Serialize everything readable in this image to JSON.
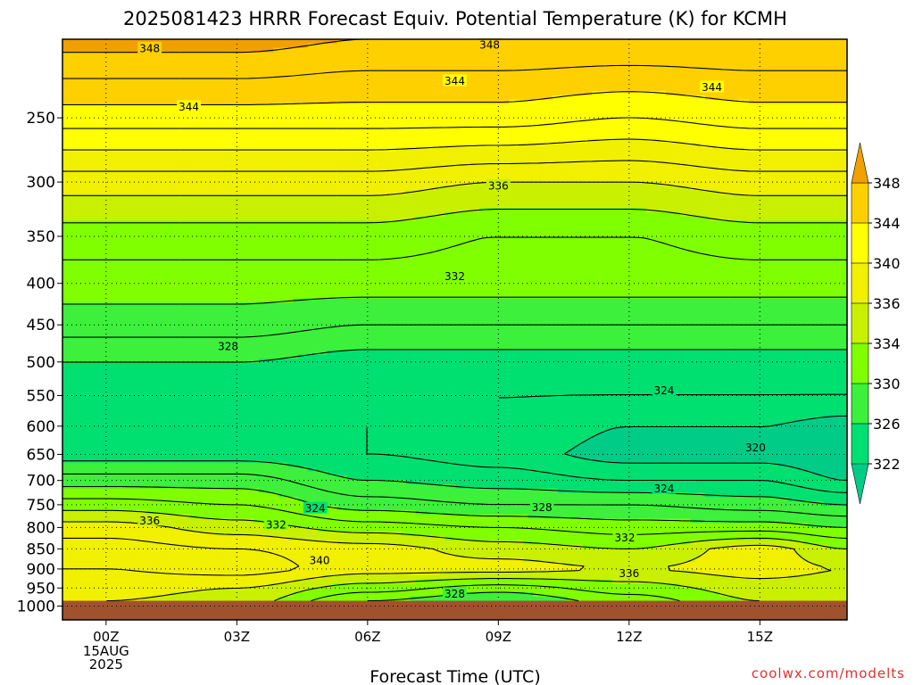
{
  "chart_data": {
    "type": "heatmap",
    "title": "2025081423 HRRR Forecast Equiv. Potential Temperature (K) for KCMH",
    "xlabel": "Forecast Time (UTC)",
    "ylabel": "",
    "x_axis": {
      "range_hours": [
        -1,
        17
      ],
      "ticks": [
        {
          "hour": 0,
          "label": "00Z",
          "date_line1": "15AUG",
          "date_line2": "2025"
        },
        {
          "hour": 3,
          "label": "03Z"
        },
        {
          "hour": 6,
          "label": "06Z"
        },
        {
          "hour": 9,
          "label": "09Z"
        },
        {
          "hour": 12,
          "label": "12Z"
        },
        {
          "hour": 15,
          "label": "15Z"
        }
      ]
    },
    "y_axis": {
      "scale": "log-pressure",
      "range_hpa": [
        1040,
        200
      ],
      "ticks": [
        250,
        300,
        350,
        400,
        450,
        500,
        550,
        600,
        650,
        700,
        750,
        800,
        850,
        900,
        950,
        1000
      ],
      "grid": "dotted"
    },
    "ground_level_hpa": 985,
    "ground_color": "#a0522d",
    "contour_interval_K": 2,
    "colorbar": {
      "levels": [
        322,
        326,
        330,
        334,
        336,
        340,
        344,
        348
      ],
      "tick_labels": [
        "322",
        "326",
        "330",
        "334",
        "336",
        "340",
        "344",
        "348"
      ],
      "bins": [
        {
          "range": [
            318,
            322
          ],
          "color": "#00cc88"
        },
        {
          "range": [
            322,
            326
          ],
          "color": "#00e070"
        },
        {
          "range": [
            326,
            330
          ],
          "color": "#3cf03c"
        },
        {
          "range": [
            330,
            334
          ],
          "color": "#80ff00"
        },
        {
          "range": [
            334,
            336
          ],
          "color": "#c8f000"
        },
        {
          "range": [
            336,
            340
          ],
          "color": "#f0f000"
        },
        {
          "range": [
            340,
            344
          ],
          "color": "#ffff00"
        },
        {
          "range": [
            344,
            348
          ],
          "color": "#ffd000"
        },
        {
          "range": [
            348,
            352
          ],
          "color": "#f0a000"
        }
      ]
    },
    "profiles": [
      {
        "hour": 0,
        "points": [
          [
            200,
            349
          ],
          [
            250,
            343
          ],
          [
            300,
            337
          ],
          [
            350,
            333
          ],
          [
            400,
            331
          ],
          [
            450,
            329
          ],
          [
            500,
            326
          ],
          [
            550,
            324
          ],
          [
            600,
            324
          ],
          [
            650,
            325
          ],
          [
            700,
            329
          ],
          [
            750,
            333
          ],
          [
            800,
            337
          ],
          [
            850,
            339
          ],
          [
            900,
            338
          ],
          [
            950,
            337
          ],
          [
            985,
            336
          ]
        ]
      },
      {
        "hour": 3,
        "points": [
          [
            200,
            349
          ],
          [
            250,
            343
          ],
          [
            300,
            337
          ],
          [
            350,
            333
          ],
          [
            400,
            331
          ],
          [
            450,
            329
          ],
          [
            500,
            326
          ],
          [
            550,
            324
          ],
          [
            600,
            324
          ],
          [
            650,
            325
          ],
          [
            700,
            329
          ],
          [
            750,
            332
          ],
          [
            800,
            335
          ],
          [
            850,
            338
          ],
          [
            900,
            339
          ],
          [
            950,
            336
          ],
          [
            985,
            335
          ]
        ]
      },
      {
        "hour": 6,
        "points": [
          [
            200,
            348
          ],
          [
            250,
            343
          ],
          [
            300,
            337
          ],
          [
            350,
            333
          ],
          [
            400,
            331
          ],
          [
            450,
            328
          ],
          [
            500,
            325
          ],
          [
            550,
            324
          ],
          [
            600,
            324
          ],
          [
            650,
            324
          ],
          [
            700,
            326
          ],
          [
            750,
            329
          ],
          [
            800,
            333
          ],
          [
            850,
            337
          ],
          [
            900,
            337
          ],
          [
            950,
            333
          ],
          [
            985,
            330
          ]
        ]
      },
      {
        "hour": 9,
        "points": [
          [
            200,
            348
          ],
          [
            250,
            343
          ],
          [
            300,
            336
          ],
          [
            350,
            332
          ],
          [
            400,
            331
          ],
          [
            450,
            328
          ],
          [
            500,
            325
          ],
          [
            550,
            324
          ],
          [
            600,
            324
          ],
          [
            650,
            323
          ],
          [
            700,
            325
          ],
          [
            750,
            328
          ],
          [
            800,
            332
          ],
          [
            850,
            335
          ],
          [
            900,
            337
          ],
          [
            950,
            331
          ],
          [
            985,
            328
          ]
        ]
      },
      {
        "hour": 12,
        "points": [
          [
            200,
            348
          ],
          [
            250,
            342
          ],
          [
            300,
            336
          ],
          [
            350,
            332
          ],
          [
            400,
            331
          ],
          [
            450,
            328
          ],
          [
            500,
            325
          ],
          [
            550,
            324
          ],
          [
            600,
            322
          ],
          [
            650,
            321
          ],
          [
            700,
            324
          ],
          [
            750,
            328
          ],
          [
            800,
            331
          ],
          [
            850,
            334
          ],
          [
            900,
            336
          ],
          [
            950,
            333
          ],
          [
            985,
            331
          ]
        ]
      },
      {
        "hour": 15,
        "points": [
          [
            200,
            348
          ],
          [
            250,
            343
          ],
          [
            300,
            337
          ],
          [
            350,
            333
          ],
          [
            400,
            331
          ],
          [
            450,
            328
          ],
          [
            500,
            325
          ],
          [
            550,
            324
          ],
          [
            600,
            322
          ],
          [
            650,
            321
          ],
          [
            700,
            324
          ],
          [
            750,
            327
          ],
          [
            800,
            331
          ],
          [
            850,
            337
          ],
          [
            900,
            337
          ],
          [
            950,
            335
          ],
          [
            985,
            334
          ]
        ]
      },
      {
        "hour": 17,
        "points": [
          [
            200,
            348
          ],
          [
            250,
            343
          ],
          [
            300,
            337
          ],
          [
            350,
            333
          ],
          [
            400,
            331
          ],
          [
            450,
            328
          ],
          [
            500,
            325
          ],
          [
            550,
            324
          ],
          [
            600,
            321
          ],
          [
            650,
            320
          ],
          [
            700,
            322
          ],
          [
            750,
            326
          ],
          [
            800,
            330
          ],
          [
            850,
            334
          ],
          [
            900,
            336
          ],
          [
            950,
            335
          ],
          [
            985,
            335
          ]
        ]
      }
    ],
    "contour_labels": [
      {
        "hour": 1.0,
        "hpa": 205,
        "text": "348"
      },
      {
        "hour": 8.8,
        "hpa": 203,
        "text": "348"
      },
      {
        "hour": 1.9,
        "hpa": 242,
        "text": "344"
      },
      {
        "hour": 8.0,
        "hpa": 225,
        "text": "344"
      },
      {
        "hour": 13.9,
        "hpa": 229,
        "text": "344"
      },
      {
        "hour": 9.0,
        "hpa": 303,
        "text": "336"
      },
      {
        "hour": 8.0,
        "hpa": 392,
        "text": "332"
      },
      {
        "hour": 2.8,
        "hpa": 478,
        "text": "328"
      },
      {
        "hour": 12.8,
        "hpa": 542,
        "text": "324"
      },
      {
        "hour": 4.8,
        "hpa": 757,
        "text": "324"
      },
      {
        "hour": 12.8,
        "hpa": 716,
        "text": "324"
      },
      {
        "hour": 14.9,
        "hpa": 637,
        "text": "320"
      },
      {
        "hour": 10.0,
        "hpa": 755,
        "text": "328"
      },
      {
        "hour": 8.0,
        "hpa": 965,
        "text": "328"
      },
      {
        "hour": 1.0,
        "hpa": 784,
        "text": "336"
      },
      {
        "hour": 3.9,
        "hpa": 793,
        "text": "332"
      },
      {
        "hour": 11.9,
        "hpa": 823,
        "text": "332"
      },
      {
        "hour": 4.9,
        "hpa": 878,
        "text": "340"
      },
      {
        "hour": 12.0,
        "hpa": 911,
        "text": "336"
      }
    ]
  },
  "credit": "coolwx.com/modelts"
}
